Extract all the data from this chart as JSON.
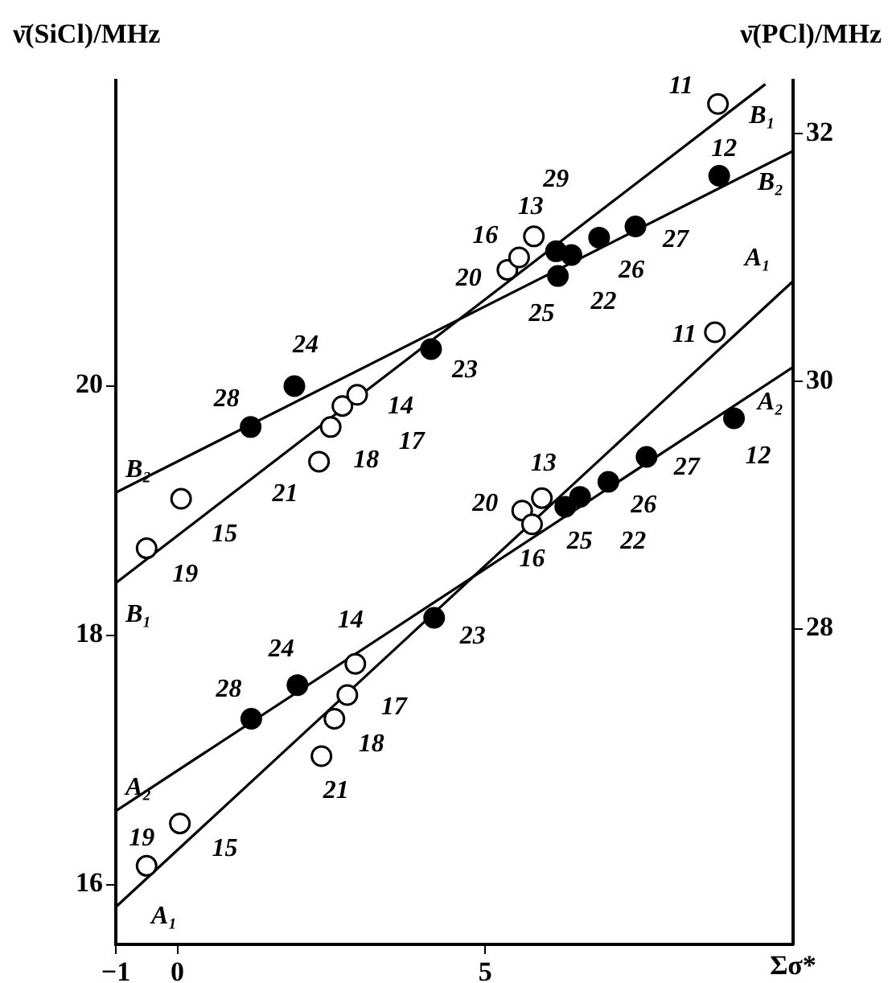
{
  "chart_data": {
    "type": "scatter",
    "ylabel": "ν̄(SiCl)/MHz",
    "y2label": "ν̄(PCl)/MHz",
    "xlabel": "Σσ*",
    "xlim": [
      -1,
      10
    ],
    "xticks": [
      {
        "value": -1,
        "label": "−1"
      },
      0,
      5
    ],
    "ylim": [
      15.52,
      22.45
    ],
    "yticks": [
      16,
      18,
      20
    ],
    "y2lim": [
      25.45,
      32.43
    ],
    "y2ticks": [
      28,
      30,
      32
    ],
    "marker": "circle",
    "series": [
      {
        "type": "scatter",
        "color": "#ffffff",
        "x": [
          -0.5,
          0.04,
          2.34,
          2.55,
          2.76,
          2.89,
          5.6,
          5.76,
          5.92,
          8.73
        ],
        "values": [
          16.15,
          16.49,
          17.03,
          17.33,
          17.52,
          17.77,
          19.0,
          18.89,
          19.1,
          20.43
        ]
      },
      {
        "type": "scatter",
        "color": "#000000",
        "x": [
          1.2,
          1.95,
          4.17,
          6.3,
          6.54,
          7.0,
          7.62,
          9.04
        ],
        "values": [
          17.33,
          17.6,
          18.14,
          19.03,
          19.11,
          19.23,
          19.43,
          19.74
        ]
      },
      {
        "type": "scatter",
        "axis": "y2",
        "color": "#ffffff",
        "x": [
          -0.5,
          0.06,
          2.3,
          2.49,
          2.68,
          2.92,
          5.36,
          5.55,
          5.79,
          8.78
        ],
        "values": [
          28.65,
          29.05,
          29.35,
          29.63,
          29.8,
          29.89,
          30.9,
          31.0,
          31.17,
          32.24
        ]
      },
      {
        "type": "scatter",
        "axis": "y2",
        "color": "#000000",
        "x": [
          1.19,
          1.9,
          4.12,
          6.18,
          6.15,
          6.4,
          6.85,
          7.44,
          8.8
        ],
        "values": [
          29.63,
          29.96,
          30.26,
          30.85,
          31.05,
          31.02,
          31.16,
          31.25,
          31.66
        ]
      },
      {
        "type": "line",
        "name": "A₁",
        "marker": "none",
        "color": "#000000",
        "x": [
          -1,
          10
        ],
        "values": [
          15.82,
          20.84
        ]
      },
      {
        "type": "line",
        "name": "A₂",
        "marker": "none",
        "color": "#000000",
        "x": [
          -1,
          10
        ],
        "values": [
          16.59,
          20.15
        ]
      },
      {
        "type": "line",
        "name": "B₁",
        "marker": "none",
        "axis": "y2",
        "color": "#000000",
        "x": [
          -1,
          9.55
        ],
        "values": [
          28.37,
          32.4
        ]
      },
      {
        "type": "line",
        "name": "B₂",
        "marker": "none",
        "axis": "y2",
        "color": "#000000",
        "x": [
          -1,
          10
        ],
        "values": [
          29.1,
          31.86
        ]
      }
    ],
    "annotations": [
      {
        "text": "19",
        "x": -0.5,
        "y": 16.15
      },
      {
        "text": "15",
        "x": 0.04,
        "y": 16.49
      },
      {
        "text": "21",
        "x": 2.34,
        "y": 17.03
      },
      {
        "text": "18",
        "x": 2.55,
        "y": 17.33
      },
      {
        "text": "17",
        "x": 2.76,
        "y": 17.52
      },
      {
        "text": "14",
        "x": 2.89,
        "y": 17.77
      },
      {
        "text": "20",
        "x": 5.6,
        "y": 19.0
      },
      {
        "text": "16",
        "x": 5.76,
        "y": 18.89
      },
      {
        "text": "13",
        "x": 5.92,
        "y": 19.1
      },
      {
        "text": "11",
        "x": 8.73,
        "y": 20.43
      },
      {
        "text": "28",
        "x": 1.2,
        "y": 17.33
      },
      {
        "text": "24",
        "x": 1.95,
        "y": 17.6
      },
      {
        "text": "23",
        "x": 4.17,
        "y": 18.14
      },
      {
        "text": "25",
        "x": 6.3,
        "y": 19.03
      },
      {
        "text": "22",
        "x": 6.54,
        "y": 19.11
      },
      {
        "text": "26",
        "x": 7.0,
        "y": 19.23
      },
      {
        "text": "27",
        "x": 7.62,
        "y": 19.43
      },
      {
        "text": "12",
        "x": 9.04,
        "y": 19.74
      },
      {
        "text": "19",
        "x": -0.5,
        "y": 18.69
      },
      {
        "text": "15",
        "x": 0.06,
        "y": 19.09
      },
      {
        "text": "21",
        "x": 2.3,
        "y": 19.39
      },
      {
        "text": "18",
        "x": 2.49,
        "y": 19.66
      },
      {
        "text": "17",
        "x": 2.68,
        "y": 19.83
      },
      {
        "text": "14",
        "x": 2.92,
        "y": 19.92
      },
      {
        "text": "20",
        "x": 5.36,
        "y": 20.92
      },
      {
        "text": "16",
        "x": 5.55,
        "y": 21.02
      },
      {
        "text": "13",
        "x": 5.79,
        "y": 21.19
      },
      {
        "text": "11",
        "x": 8.78,
        "y": 22.26
      },
      {
        "text": "28",
        "x": 1.19,
        "y": 19.66
      },
      {
        "text": "24",
        "x": 1.9,
        "y": 19.99
      },
      {
        "text": "23",
        "x": 4.12,
        "y": 20.29
      },
      {
        "text": "25",
        "x": 6.18,
        "y": 20.87
      },
      {
        "text": "29",
        "x": 6.15,
        "y": 21.06
      },
      {
        "text": "22",
        "x": 6.4,
        "y": 21.03
      },
      {
        "text": "26",
        "x": 6.85,
        "y": 21.17
      },
      {
        "text": "27",
        "x": 7.44,
        "y": 21.26
      },
      {
        "text": "12",
        "x": 8.8,
        "y": 21.68
      }
    ]
  }
}
